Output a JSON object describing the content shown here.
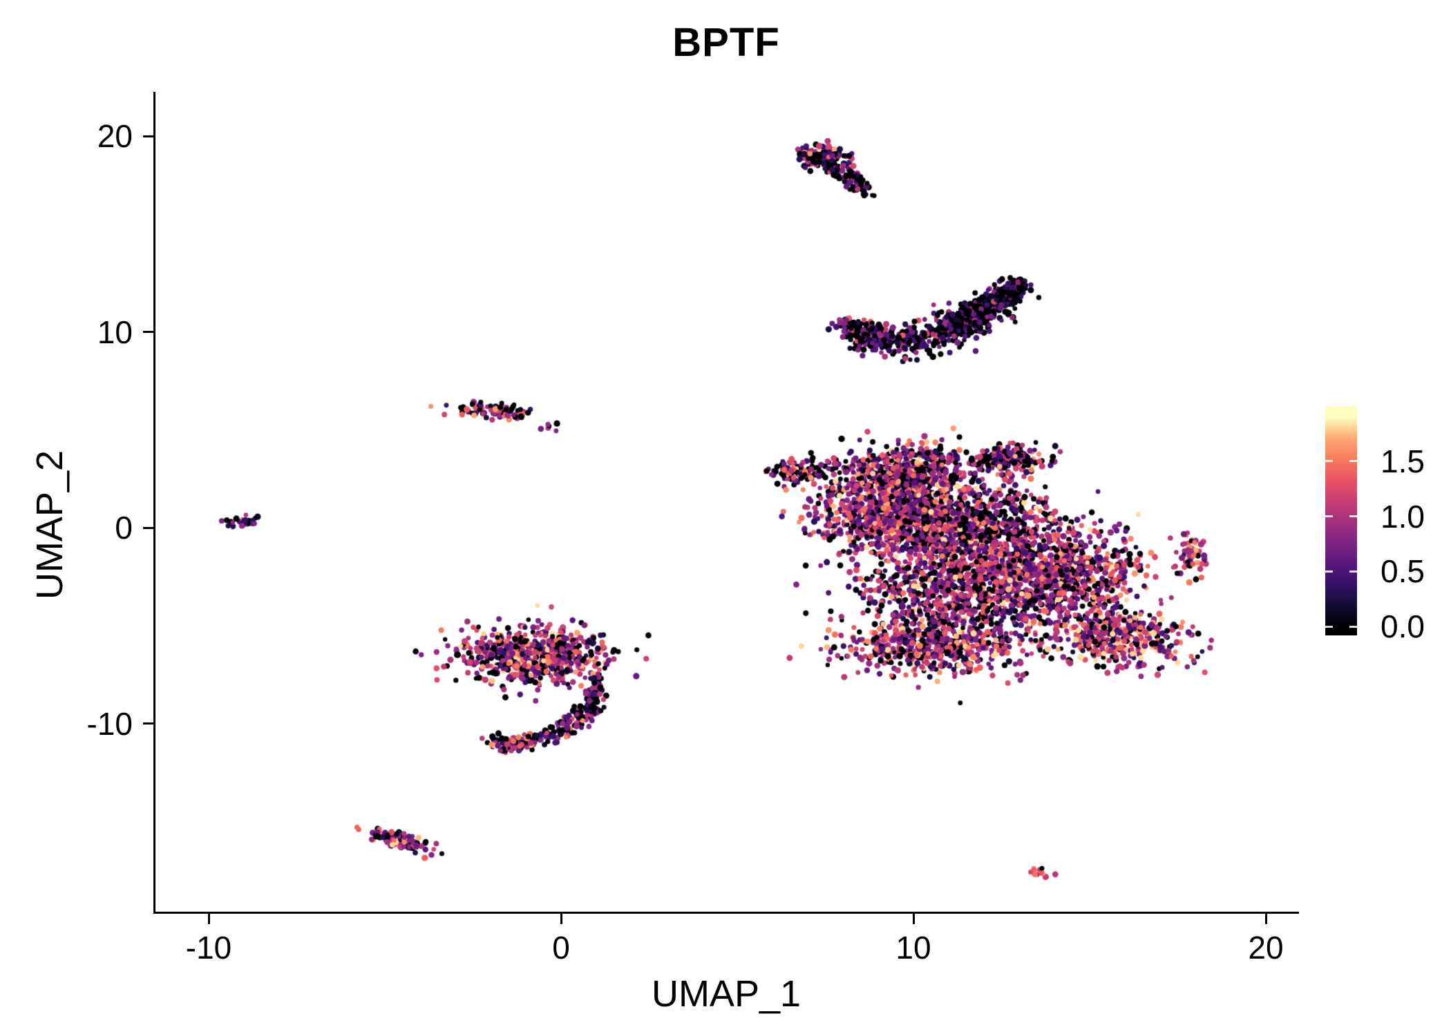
{
  "title": "BPTF",
  "axes": {
    "x": {
      "label": "UMAP_1",
      "ticks": [
        {
          "value": -10,
          "label": "-10"
        },
        {
          "value": 0,
          "label": "0"
        },
        {
          "value": 10,
          "label": "10"
        },
        {
          "value": 20,
          "label": "20"
        }
      ]
    },
    "y": {
      "label": "UMAP_2",
      "ticks": [
        {
          "value": 20,
          "label": "20"
        },
        {
          "value": 10,
          "label": "10"
        },
        {
          "value": 0,
          "label": "0"
        },
        {
          "value": -10,
          "label": "-10"
        }
      ]
    }
  },
  "legend": {
    "bar_domain": [
      -0.08,
      2.0
    ],
    "ticks": [
      {
        "value": 1.5,
        "label": "1.5"
      },
      {
        "value": 1.0,
        "label": "1.0"
      },
      {
        "value": 0.5,
        "label": "0.5"
      },
      {
        "value": 0.0,
        "label": "0.0"
      }
    ]
  },
  "colors": {
    "background": "#ffffff",
    "axis": "#000000",
    "colormap": [
      [
        0.0,
        "#000004"
      ],
      [
        0.1,
        "#120d31"
      ],
      [
        0.2,
        "#331068"
      ],
      [
        0.3,
        "#5a167e"
      ],
      [
        0.4,
        "#7d2482"
      ],
      [
        0.5,
        "#a3307e"
      ],
      [
        0.6,
        "#c83e73"
      ],
      [
        0.7,
        "#e95462"
      ],
      [
        0.8,
        "#f97b5d"
      ],
      [
        0.9,
        "#fea873"
      ],
      [
        0.95,
        "#fed395"
      ],
      [
        1.0,
        "#fcfdbf"
      ]
    ]
  },
  "chart_data": {
    "type": "scatter",
    "title": "BPTF",
    "xlabel": "UMAP_1",
    "ylabel": "UMAP_2",
    "xlim": [
      -11.5,
      20.9
    ],
    "ylim": [
      -19.6,
      22.2
    ],
    "grid": false,
    "legend_position": "right",
    "color_scale": {
      "name": "magma-like",
      "domain": [
        0,
        1.9
      ],
      "measure": "expression"
    },
    "point_radius_px": 4,
    "seed": 42,
    "n_points_approx": 7400,
    "clusters": [
      {
        "id": "comet-head",
        "type": "gauss",
        "cx": 7.45,
        "cy": 18.9,
        "sx": 0.35,
        "sy": 0.3,
        "rot": -40,
        "count": 130,
        "expr": {
          "zero_frac": 0.35,
          "mean": 0.7,
          "sd": 0.45
        }
      },
      {
        "id": "comet-tail",
        "type": "gauss",
        "cx": 8.1,
        "cy": 17.9,
        "sx": 0.65,
        "sy": 0.18,
        "rot": -55,
        "count": 100,
        "expr": {
          "zero_frac": 0.4,
          "mean": 0.6,
          "sd": 0.4
        }
      },
      {
        "id": "crescent-main",
        "type": "bezier",
        "p0": [
          7.95,
          10.55
        ],
        "p1": [
          10.1,
          7.65
        ],
        "p2": [
          13.0,
          12.55
        ],
        "thickness": 0.4,
        "t_pow": 0.9,
        "count": 620,
        "expr": {
          "zero_frac": 0.35,
          "mean": 0.6,
          "sd": 0.38
        }
      },
      {
        "id": "crescent-right-arm",
        "type": "bezier",
        "p0": [
          10.9,
          10.2
        ],
        "p1": [
          12.1,
          10.7
        ],
        "p2": [
          13.0,
          12.5
        ],
        "thickness": 0.3,
        "t_pow": 1,
        "count": 300,
        "expr": {
          "zero_frac": 0.6,
          "mean": 0.4,
          "sd": 0.3
        }
      },
      {
        "id": "small-left",
        "type": "gauss",
        "cx": -1.95,
        "cy": 6.0,
        "sx": 0.55,
        "sy": 0.2,
        "rot": -8,
        "count": 90,
        "expr": {
          "zero_frac": 0.25,
          "mean": 0.95,
          "sd": 0.5
        }
      },
      {
        "id": "tiny-mid",
        "type": "gauss",
        "cx": -0.3,
        "cy": 5.15,
        "sx": 0.15,
        "sy": 0.08,
        "rot": 0,
        "count": 6,
        "expr": {
          "zero_frac": 0.1,
          "mean": 1.1,
          "sd": 0.4
        }
      },
      {
        "id": "far-left",
        "type": "gauss",
        "cx": -9.1,
        "cy": 0.35,
        "sx": 0.24,
        "sy": 0.16,
        "rot": 0,
        "count": 28,
        "expr": {
          "zero_frac": 0.3,
          "mean": 0.75,
          "sd": 0.45
        }
      },
      {
        "id": "main-left-spur",
        "type": "gauss",
        "cx": 6.7,
        "cy": 2.9,
        "sx": 0.42,
        "sy": 0.35,
        "rot": 0,
        "count": 90,
        "expr": {
          "zero_frac": 0.3,
          "mean": 0.8,
          "sd": 0.45
        }
      },
      {
        "id": "main-top-lobe",
        "type": "gauss",
        "cx": 9.7,
        "cy": 2.9,
        "sx": 1.0,
        "sy": 0.65,
        "rot": 0,
        "count": 550,
        "expr": {
          "zero_frac": 0.18,
          "mean": 0.95,
          "sd": 0.5
        }
      },
      {
        "id": "main-top-right-spur",
        "type": "gauss",
        "cx": 12.7,
        "cy": 3.5,
        "sx": 0.55,
        "sy": 0.35,
        "rot": 0,
        "count": 180,
        "expr": {
          "zero_frac": 0.22,
          "mean": 0.85,
          "sd": 0.5
        }
      },
      {
        "id": "main-left-lobe",
        "type": "gauss",
        "cx": 9.2,
        "cy": 0.8,
        "sx": 1.0,
        "sy": 1.0,
        "rot": 0,
        "count": 800,
        "expr": {
          "zero_frac": 0.15,
          "mean": 1.0,
          "sd": 0.5
        }
      },
      {
        "id": "main-center",
        "type": "gauss",
        "cx": 11.5,
        "cy": 0.2,
        "sx": 1.3,
        "sy": 1.1,
        "rot": 0,
        "count": 850,
        "expr": {
          "zero_frac": 0.2,
          "mean": 0.85,
          "sd": 0.5
        }
      },
      {
        "id": "main-lower-center",
        "type": "gauss",
        "cx": 11.3,
        "cy": -3.2,
        "sx": 1.4,
        "sy": 1.5,
        "rot": 0,
        "count": 1000,
        "expr": {
          "zero_frac": 0.18,
          "mean": 0.85,
          "sd": 0.5
        }
      },
      {
        "id": "main-right-lobe",
        "type": "gauss",
        "cx": 14.3,
        "cy": -2.3,
        "sx": 1.2,
        "sy": 1.2,
        "rot": 0,
        "count": 700,
        "expr": {
          "zero_frac": 0.18,
          "mean": 0.9,
          "sd": 0.5
        }
      },
      {
        "id": "main-lower-right",
        "type": "gauss",
        "cx": 15.9,
        "cy": -5.6,
        "sx": 1.0,
        "sy": 0.75,
        "rot": -15,
        "count": 420,
        "expr": {
          "zero_frac": 0.15,
          "mean": 1.05,
          "sd": 0.5
        }
      },
      {
        "id": "main-bottom-band",
        "type": "gauss",
        "cx": 10.4,
        "cy": -6.2,
        "sx": 1.3,
        "sy": 0.7,
        "rot": 0,
        "count": 450,
        "expr": {
          "zero_frac": 0.15,
          "mean": 1.0,
          "sd": 0.5
        }
      },
      {
        "id": "right-small",
        "type": "gauss",
        "cx": 17.9,
        "cy": -1.4,
        "sx": 0.22,
        "sy": 0.55,
        "rot": 0,
        "count": 55,
        "expr": {
          "zero_frac": 0.15,
          "mean": 1.1,
          "sd": 0.45
        }
      },
      {
        "id": "hook-blob",
        "type": "gauss",
        "cx": -0.75,
        "cy": -6.5,
        "sx": 1.1,
        "sy": 0.7,
        "rot": 0,
        "count": 650,
        "expr": {
          "zero_frac": 0.2,
          "mean": 1.0,
          "sd": 0.5
        }
      },
      {
        "id": "hook-tail",
        "type": "bezier",
        "p0": [
          1.0,
          -7.5
        ],
        "p1": [
          1.15,
          -10.6
        ],
        "p2": [
          -1.85,
          -11.15
        ],
        "thickness": 0.22,
        "t_pow": 1,
        "count": 200,
        "expr": {
          "zero_frac": 0.35,
          "mean": 0.6,
          "sd": 0.45
        }
      },
      {
        "id": "hook-tail-tip",
        "type": "gauss",
        "cx": -1.55,
        "cy": -11.0,
        "sx": 0.35,
        "sy": 0.2,
        "rot": -10,
        "count": 70,
        "expr": {
          "zero_frac": 0.2,
          "mean": 1.0,
          "sd": 0.5
        }
      },
      {
        "id": "bottom-left",
        "type": "gauss",
        "cx": -4.6,
        "cy": -15.95,
        "sx": 0.5,
        "sy": 0.2,
        "rot": -30,
        "count": 100,
        "expr": {
          "zero_frac": 0.25,
          "mean": 0.9,
          "sd": 0.5
        }
      },
      {
        "id": "tiny-bottom-right",
        "type": "gauss",
        "cx": 13.55,
        "cy": -17.55,
        "sx": 0.18,
        "sy": 0.13,
        "rot": -20,
        "count": 14,
        "expr": {
          "zero_frac": 0.15,
          "mean": 1.1,
          "sd": 0.35
        }
      }
    ]
  }
}
